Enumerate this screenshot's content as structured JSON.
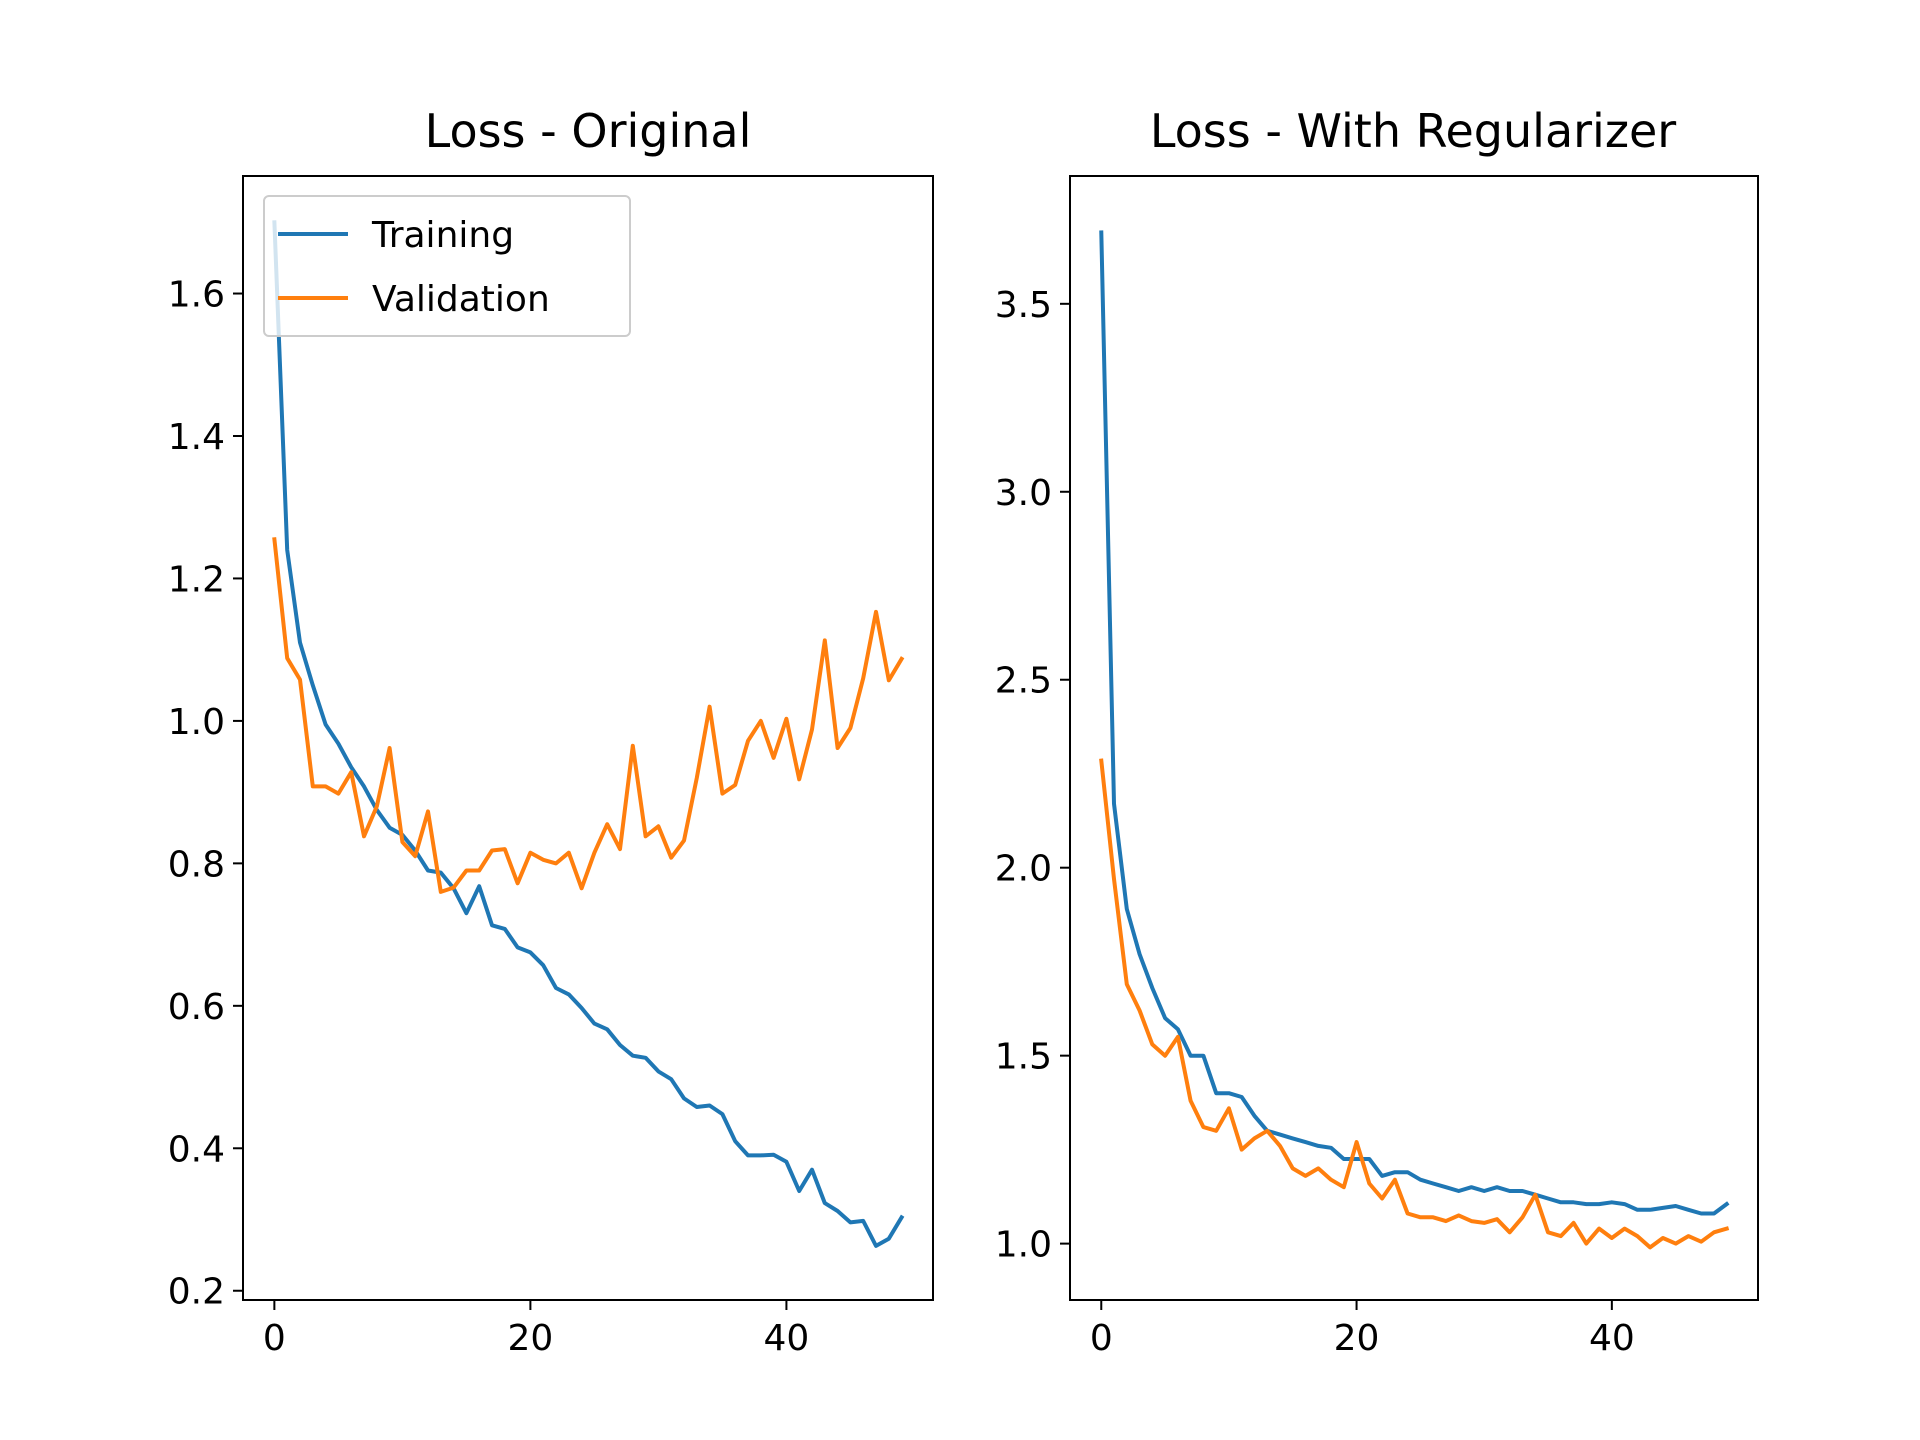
{
  "chart_data": [
    {
      "type": "line",
      "title": "Loss - Original",
      "xlabel": "",
      "ylabel": "",
      "xlim": [
        -2.45,
        51.45
      ],
      "ylim": [
        0.187,
        1.765
      ],
      "xticks": [
        0,
        20,
        40
      ],
      "xtick_labels": [
        "0",
        "20",
        "40"
      ],
      "yticks": [
        0.2,
        0.4,
        0.6,
        0.8,
        1.0,
        1.2,
        1.4,
        1.6
      ],
      "ytick_labels": [
        "0.2",
        "0.4",
        "0.6",
        "0.8",
        "1.0",
        "1.2",
        "1.4",
        "1.6"
      ],
      "grid": false,
      "legend_position": "upper left",
      "x": [
        0,
        1,
        2,
        3,
        4,
        5,
        6,
        7,
        8,
        9,
        10,
        11,
        12,
        13,
        14,
        15,
        16,
        17,
        18,
        19,
        20,
        21,
        22,
        23,
        24,
        25,
        26,
        27,
        28,
        29,
        30,
        31,
        32,
        33,
        34,
        35,
        36,
        37,
        38,
        39,
        40,
        41,
        42,
        43,
        44,
        45,
        46,
        47,
        48,
        49
      ],
      "series": [
        {
          "name": "Training",
          "color": "#1f77b4",
          "values": [
            1.7,
            1.24,
            1.11,
            1.05,
            0.995,
            0.968,
            0.935,
            0.908,
            0.875,
            0.85,
            0.84,
            0.818,
            0.79,
            0.787,
            0.765,
            0.73,
            0.768,
            0.713,
            0.708,
            0.682,
            0.675,
            0.657,
            0.625,
            0.616,
            0.597,
            0.575,
            0.567,
            0.545,
            0.53,
            0.527,
            0.508,
            0.497,
            0.47,
            0.458,
            0.46,
            0.448,
            0.41,
            0.39,
            0.39,
            0.391,
            0.381,
            0.34,
            0.37,
            0.323,
            0.312,
            0.296,
            0.298,
            0.263,
            0.273,
            0.303
          ]
        },
        {
          "name": "Validation",
          "color": "#ff7f0e",
          "values": [
            1.255,
            1.088,
            1.058,
            0.908,
            0.908,
            0.898,
            0.928,
            0.838,
            0.88,
            0.962,
            0.83,
            0.81,
            0.873,
            0.76,
            0.766,
            0.79,
            0.79,
            0.818,
            0.82,
            0.772,
            0.815,
            0.805,
            0.8,
            0.815,
            0.765,
            0.815,
            0.855,
            0.82,
            0.965,
            0.838,
            0.852,
            0.808,
            0.832,
            0.92,
            1.02,
            0.898,
            0.91,
            0.972,
            1.0,
            0.948,
            1.003,
            0.918,
            0.988,
            1.113,
            0.962,
            0.99,
            1.06,
            1.153,
            1.057,
            1.087
          ]
        }
      ]
    },
    {
      "type": "line",
      "title": "Loss - With Regularizer",
      "xlabel": "",
      "ylabel": "",
      "xlim": [
        -2.45,
        51.45
      ],
      "ylim": [
        0.85,
        3.84
      ],
      "xticks": [
        0,
        20,
        40
      ],
      "xtick_labels": [
        "0",
        "20",
        "40"
      ],
      "yticks": [
        1.0,
        1.5,
        2.0,
        2.5,
        3.0,
        3.5
      ],
      "ytick_labels": [
        "1.0",
        "1.5",
        "2.0",
        "2.5",
        "3.0",
        "3.5"
      ],
      "grid": false,
      "x": [
        0,
        1,
        2,
        3,
        4,
        5,
        6,
        7,
        8,
        9,
        10,
        11,
        12,
        13,
        14,
        15,
        16,
        17,
        18,
        19,
        20,
        21,
        22,
        23,
        24,
        25,
        26,
        27,
        28,
        29,
        30,
        31,
        32,
        33,
        34,
        35,
        36,
        37,
        38,
        39,
        40,
        41,
        42,
        43,
        44,
        45,
        46,
        47,
        48,
        49
      ],
      "series": [
        {
          "name": "Training",
          "color": "#1f77b4",
          "values": [
            3.69,
            2.17,
            1.89,
            1.77,
            1.68,
            1.6,
            1.57,
            1.5,
            1.5,
            1.4,
            1.4,
            1.39,
            1.34,
            1.3,
            1.29,
            1.28,
            1.27,
            1.26,
            1.255,
            1.225,
            1.225,
            1.225,
            1.18,
            1.19,
            1.19,
            1.17,
            1.16,
            1.15,
            1.14,
            1.15,
            1.14,
            1.15,
            1.14,
            1.14,
            1.13,
            1.12,
            1.11,
            1.11,
            1.105,
            1.105,
            1.11,
            1.105,
            1.09,
            1.09,
            1.095,
            1.1,
            1.09,
            1.08,
            1.08,
            1.105
          ]
        },
        {
          "name": "Validation",
          "color": "#ff7f0e",
          "values": [
            2.285,
            1.97,
            1.69,
            1.62,
            1.53,
            1.5,
            1.55,
            1.38,
            1.31,
            1.3,
            1.36,
            1.25,
            1.28,
            1.3,
            1.26,
            1.2,
            1.18,
            1.2,
            1.17,
            1.15,
            1.27,
            1.16,
            1.12,
            1.17,
            1.08,
            1.07,
            1.07,
            1.06,
            1.075,
            1.06,
            1.055,
            1.065,
            1.03,
            1.07,
            1.13,
            1.03,
            1.02,
            1.055,
            1.0,
            1.04,
            1.015,
            1.04,
            1.02,
            0.99,
            1.015,
            1.0,
            1.02,
            1.005,
            1.03,
            1.04
          ]
        }
      ]
    }
  ]
}
